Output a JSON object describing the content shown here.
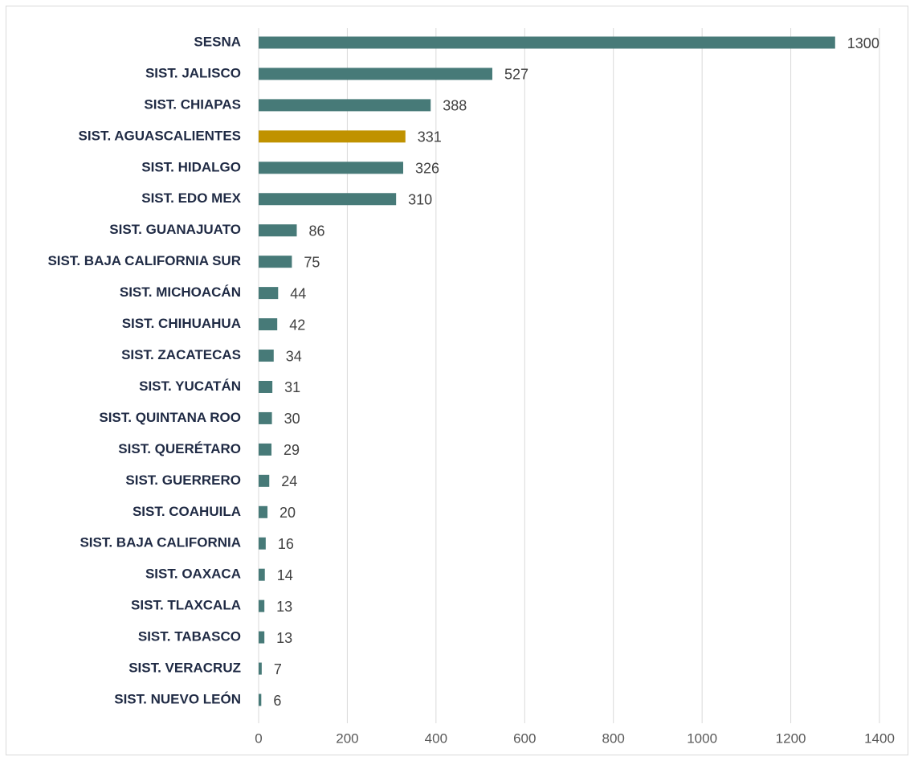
{
  "chart_data": {
    "type": "bar",
    "orientation": "horizontal",
    "categories": [
      "SESNA",
      "SIST. JALISCO",
      "SIST. CHIAPAS",
      "SIST. AGUASCALIENTES",
      "SIST. HIDALGO",
      "SIST. EDO MEX",
      "SIST. GUANAJUATO",
      "SIST. BAJA CALIFORNIA SUR",
      "SIST. MICHOACÁN",
      "SIST. CHIHUAHUA",
      "SIST. ZACATECAS",
      "SIST. YUCATÁN",
      "SIST. QUINTANA ROO",
      "SIST. QUERÉTARO",
      "SIST. GUERRERO",
      "SIST. COAHUILA",
      "SIST. BAJA CALIFORNIA",
      "SIST. OAXACA",
      "SIST. TLAXCALA",
      "SIST. TABASCO",
      "SIST. VERACRUZ",
      "SIST. NUEVO LEÓN"
    ],
    "values": [
      1300,
      527,
      388,
      331,
      326,
      310,
      86,
      75,
      44,
      42,
      34,
      31,
      30,
      29,
      24,
      20,
      16,
      14,
      13,
      13,
      7,
      6
    ],
    "colors": [
      "#477a78",
      "#477a78",
      "#477a78",
      "#c09200",
      "#477a78",
      "#477a78",
      "#477a78",
      "#477a78",
      "#477a78",
      "#477a78",
      "#477a78",
      "#477a78",
      "#477a78",
      "#477a78",
      "#477a78",
      "#477a78",
      "#477a78",
      "#477a78",
      "#477a78",
      "#477a78",
      "#477a78",
      "#477a78"
    ],
    "xlim": [
      0,
      1400
    ],
    "xticks": [
      0,
      200,
      400,
      600,
      800,
      1000,
      1200,
      1400
    ],
    "grid": true
  }
}
